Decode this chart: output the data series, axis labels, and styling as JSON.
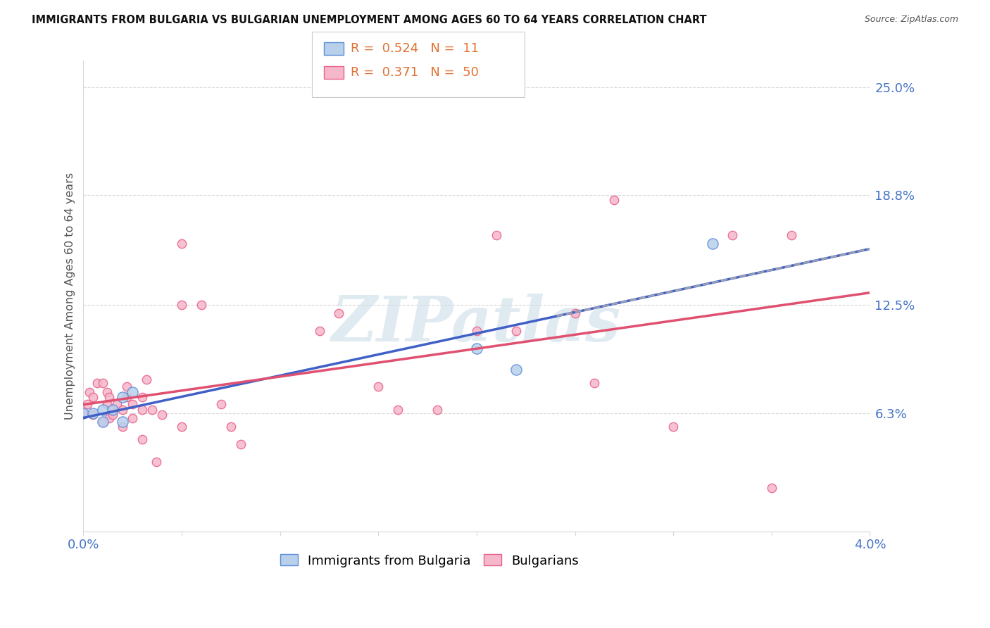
{
  "title": "IMMIGRANTS FROM BULGARIA VS BULGARIAN UNEMPLOYMENT AMONG AGES 60 TO 64 YEARS CORRELATION CHART",
  "source": "Source: ZipAtlas.com",
  "ylabel": "Unemployment Among Ages 60 to 64 years",
  "xlim": [
    0.0,
    0.04
  ],
  "ylim": [
    -0.005,
    0.265
  ],
  "xticks": [
    0.0,
    0.005,
    0.01,
    0.015,
    0.02,
    0.025,
    0.03,
    0.035,
    0.04
  ],
  "right_ytick_values": [
    0.063,
    0.125,
    0.188,
    0.25
  ],
  "right_ytick_labels": [
    "6.3%",
    "12.5%",
    "18.8%",
    "25.0%"
  ],
  "legend_blue_R": "0.524",
  "legend_blue_N": "11",
  "legend_pink_R": "0.371",
  "legend_pink_N": "50",
  "blue_fill_color": "#b8d0ea",
  "pink_fill_color": "#f5b8cb",
  "blue_edge_color": "#5b8dd9",
  "pink_edge_color": "#e8608a",
  "blue_line_color": "#4060c8",
  "pink_line_color": "#e05070",
  "blue_scatter_x": [
    0.0,
    0.0005,
    0.001,
    0.001,
    0.0015,
    0.002,
    0.002,
    0.0025,
    0.02,
    0.022,
    0.032
  ],
  "blue_scatter_y": [
    0.063,
    0.063,
    0.058,
    0.065,
    0.065,
    0.058,
    0.072,
    0.075,
    0.1,
    0.088,
    0.16
  ],
  "pink_scatter_x": [
    0.0,
    0.0002,
    0.0003,
    0.0005,
    0.0005,
    0.0007,
    0.001,
    0.001,
    0.0012,
    0.0012,
    0.0013,
    0.0013,
    0.0015,
    0.0015,
    0.0017,
    0.002,
    0.002,
    0.0022,
    0.0022,
    0.0025,
    0.0025,
    0.003,
    0.003,
    0.003,
    0.0032,
    0.0035,
    0.0037,
    0.004,
    0.005,
    0.005,
    0.005,
    0.006,
    0.007,
    0.0075,
    0.008,
    0.012,
    0.013,
    0.015,
    0.016,
    0.018,
    0.02,
    0.021,
    0.022,
    0.025,
    0.026,
    0.027,
    0.03,
    0.033,
    0.035,
    0.036
  ],
  "pink_scatter_y": [
    0.063,
    0.068,
    0.075,
    0.072,
    0.062,
    0.08,
    0.08,
    0.058,
    0.075,
    0.068,
    0.072,
    0.06,
    0.062,
    0.065,
    0.068,
    0.065,
    0.055,
    0.072,
    0.078,
    0.068,
    0.06,
    0.072,
    0.048,
    0.065,
    0.082,
    0.065,
    0.035,
    0.062,
    0.16,
    0.125,
    0.055,
    0.125,
    0.068,
    0.055,
    0.045,
    0.11,
    0.12,
    0.078,
    0.065,
    0.065,
    0.11,
    0.165,
    0.11,
    0.12,
    0.08,
    0.185,
    0.055,
    0.165,
    0.02,
    0.165
  ],
  "blue_marker_s": 120,
  "pink_marker_s": 80,
  "grid_color": "#d8d8d8",
  "axis_color": "#4472c4",
  "title_color": "#111111",
  "watermark_color": "#ccdde8",
  "source_color": "#555555"
}
